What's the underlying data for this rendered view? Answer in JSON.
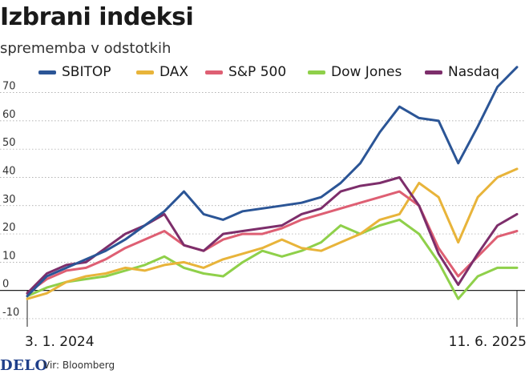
{
  "title": "Izbrani indeksi",
  "subtitle": "sprememba v odstotkih",
  "legend": [
    {
      "name": "SBITOP",
      "color": "#2b5596"
    },
    {
      "name": "DAX",
      "color": "#e8b43a"
    },
    {
      "name": "S&P 500",
      "color": "#de5f73"
    },
    {
      "name": "Dow Jones",
      "color": "#8fd04a"
    },
    {
      "name": "Nasdaq",
      "color": "#7d2e6b"
    }
  ],
  "footer": {
    "logo": "DELO",
    "source": "Vir: Bloomberg"
  },
  "chart_data": {
    "type": "line",
    "title": "Izbrani indeksi",
    "subtitle": "sprememba v odstotkih",
    "xlabel": "",
    "ylabel": "",
    "x_tick_labels": [
      "3. 1. 2024",
      "11. 6. 2025"
    ],
    "y_ticks": [
      -10,
      0,
      10,
      20,
      30,
      40,
      50,
      60,
      70
    ],
    "ylim": [
      -12,
      73
    ],
    "grid": true,
    "legend_position": "top",
    "x": [
      0,
      0.04,
      0.08,
      0.12,
      0.16,
      0.2,
      0.24,
      0.28,
      0.32,
      0.36,
      0.4,
      0.44,
      0.48,
      0.52,
      0.56,
      0.6,
      0.64,
      0.68,
      0.72,
      0.76,
      0.8,
      0.84,
      0.88,
      0.92,
      0.96,
      1.0
    ],
    "series": [
      {
        "name": "SBITOP",
        "color": "#2b5596",
        "values": [
          -2,
          5,
          8,
          11,
          14,
          18,
          23,
          28,
          35,
          27,
          25,
          28,
          29,
          30,
          31,
          33,
          38,
          45,
          56,
          65,
          61,
          60,
          45,
          58,
          72,
          79
        ]
      },
      {
        "name": "DAX",
        "color": "#e8b43a",
        "values": [
          -3,
          -1,
          3,
          5,
          6,
          8,
          7,
          9,
          10,
          8,
          11,
          13,
          15,
          18,
          15,
          14,
          17,
          20,
          25,
          27,
          38,
          33,
          17,
          33,
          40,
          43
        ]
      },
      {
        "name": "S&P 500",
        "color": "#de5f73",
        "values": [
          -1,
          4,
          7,
          8,
          11,
          15,
          18,
          21,
          16,
          14,
          18,
          20,
          20,
          22,
          25,
          27,
          29,
          31,
          33,
          35,
          30,
          15,
          5,
          12,
          19,
          21
        ]
      },
      {
        "name": "Dow Jones",
        "color": "#8fd04a",
        "values": [
          -2,
          1,
          3,
          4,
          5,
          7,
          9,
          12,
          8,
          6,
          5,
          10,
          14,
          12,
          14,
          17,
          23,
          20,
          23,
          25,
          20,
          10,
          -3,
          5,
          8,
          8
        ]
      },
      {
        "name": "Nasdaq",
        "color": "#7d2e6b",
        "values": [
          -1,
          6,
          9,
          10,
          15,
          20,
          23,
          27,
          16,
          14,
          20,
          21,
          22,
          23,
          27,
          29,
          35,
          37,
          38,
          40,
          30,
          13,
          2,
          13,
          23,
          27
        ]
      }
    ]
  }
}
